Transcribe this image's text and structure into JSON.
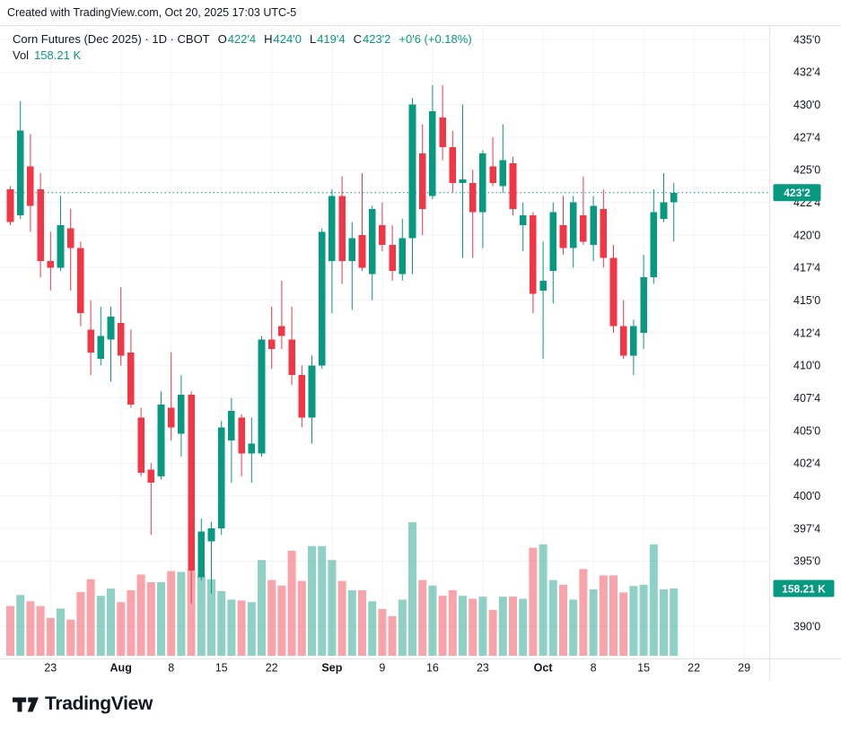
{
  "attribution": "Created with TradingView.com, Oct 20, 2025 17:03 UTC-5",
  "legend": {
    "title": "Corn Futures (Dec 2025) · 1D · CBOT",
    "ohlc": [
      {
        "label": "O",
        "value": "422'4"
      },
      {
        "label": "H",
        "value": "424'0"
      },
      {
        "label": "L",
        "value": "419'4"
      },
      {
        "label": "C",
        "value": "423'2"
      }
    ],
    "change": "+0'6 (+0.18%)",
    "vol_label": "Vol",
    "vol_value": "158.21 K"
  },
  "footer": {
    "logo_text": "TradingView"
  },
  "colors": {
    "up": "#089981",
    "down": "#F23645",
    "vol_up": "rgba(8,153,129,0.45)",
    "vol_down": "rgba(242,54,69,0.45)",
    "text": "#131722",
    "grid": "#F0F3FA",
    "border": "#E0E3EB",
    "badge_text": "#FFFFFF"
  },
  "chart_data": {
    "type": "candlestick+volume",
    "title": "Corn Futures (Dec 2025) 1D CBOT",
    "ylim": [
      390,
      435
    ],
    "grid": true,
    "price_format": "points-and-eighths",
    "current_price": {
      "label": "423'2",
      "value": 423.25
    },
    "current_volume": {
      "label": "158.21 K",
      "value": 158.21
    },
    "y_ticks": [
      {
        "label": "435'0",
        "value": 435.0
      },
      {
        "label": "432'4",
        "value": 432.5
      },
      {
        "label": "430'0",
        "value": 430.0
      },
      {
        "label": "427'4",
        "value": 427.5
      },
      {
        "label": "425'0",
        "value": 425.0
      },
      {
        "label": "422'4",
        "value": 422.5
      },
      {
        "label": "420'0",
        "value": 420.0
      },
      {
        "label": "417'4",
        "value": 417.5
      },
      {
        "label": "415'0",
        "value": 415.0
      },
      {
        "label": "412'4",
        "value": 412.5
      },
      {
        "label": "410'0",
        "value": 410.0
      },
      {
        "label": "407'4",
        "value": 407.5
      },
      {
        "label": "405'0",
        "value": 405.0
      },
      {
        "label": "402'4",
        "value": 402.5
      },
      {
        "label": "400'0",
        "value": 400.0
      },
      {
        "label": "397'4",
        "value": 397.5
      },
      {
        "label": "395'0",
        "value": 395.0
      },
      {
        "label": "390'0",
        "value": 390.0
      }
    ],
    "x_ticks": [
      {
        "label": "23",
        "bar": 4
      },
      {
        "label": "Aug",
        "bar": 11
      },
      {
        "label": "8",
        "bar": 16
      },
      {
        "label": "15",
        "bar": 21
      },
      {
        "label": "22",
        "bar": 26
      },
      {
        "label": "Sep",
        "bar": 32
      },
      {
        "label": "9",
        "bar": 37
      },
      {
        "label": "16",
        "bar": 42
      },
      {
        "label": "23",
        "bar": 47
      },
      {
        "label": "Oct",
        "bar": 53
      },
      {
        "label": "8",
        "bar": 58
      },
      {
        "label": "15",
        "bar": 63
      },
      {
        "label": "22",
        "bar": 68
      },
      {
        "label": "29",
        "bar": 73
      }
    ],
    "candle_fields": [
      "open",
      "high",
      "low",
      "close",
      "volume_k"
    ],
    "candles": [
      [
        423.5,
        423.75,
        420.75,
        421.0,
        117
      ],
      [
        421.5,
        430.25,
        421.25,
        428.0,
        143
      ],
      [
        425.25,
        427.75,
        420.25,
        422.25,
        128
      ],
      [
        423.5,
        424.75,
        416.75,
        418.0,
        117
      ],
      [
        418.0,
        420.25,
        415.75,
        417.5,
        89
      ],
      [
        417.5,
        423.0,
        417.25,
        420.75,
        111
      ],
      [
        420.5,
        422.0,
        415.75,
        419.0,
        85
      ],
      [
        419.0,
        419.5,
        413.0,
        414.0,
        150
      ],
      [
        412.75,
        415.0,
        409.25,
        411.0,
        180
      ],
      [
        410.5,
        414.5,
        410.0,
        412.25,
        141
      ],
      [
        412.0,
        414.5,
        408.75,
        413.75,
        158
      ],
      [
        413.25,
        416.0,
        410.0,
        410.75,
        126
      ],
      [
        411.0,
        412.75,
        406.75,
        407.0,
        154
      ],
      [
        406.0,
        406.75,
        401.5,
        401.75,
        191
      ],
      [
        402.0,
        402.5,
        397.0,
        401.0,
        173
      ],
      [
        401.5,
        408.0,
        401.25,
        407.0,
        173
      ],
      [
        406.75,
        411.0,
        404.25,
        405.25,
        199
      ],
      [
        404.75,
        409.25,
        403.0,
        407.75,
        197
      ],
      [
        407.75,
        408.0,
        391.75,
        394.25,
        202
      ],
      [
        393.75,
        398.25,
        393.5,
        397.25,
        188
      ],
      [
        396.5,
        398.0,
        392.5,
        397.5,
        180
      ],
      [
        397.5,
        405.75,
        397.0,
        405.25,
        152
      ],
      [
        404.25,
        407.5,
        401.0,
        406.5,
        132
      ],
      [
        406.0,
        406.25,
        401.5,
        403.25,
        130
      ],
      [
        403.25,
        406.0,
        401.0,
        404.0,
        126
      ],
      [
        403.25,
        412.25,
        403.0,
        412.0,
        225
      ],
      [
        412.0,
        414.5,
        409.75,
        411.25,
        178
      ],
      [
        413.0,
        416.5,
        411.25,
        412.25,
        165
      ],
      [
        412.0,
        414.5,
        408.5,
        409.25,
        247
      ],
      [
        409.25,
        410.0,
        405.25,
        406.0,
        176
      ],
      [
        406.0,
        410.75,
        404.0,
        410.0,
        258
      ],
      [
        410.0,
        420.5,
        409.75,
        420.25,
        258
      ],
      [
        418.0,
        423.5,
        414.0,
        423.0,
        225
      ],
      [
        423.0,
        424.5,
        416.25,
        418.0,
        176
      ],
      [
        418.0,
        421.0,
        414.25,
        419.75,
        154
      ],
      [
        420.0,
        424.75,
        417.25,
        417.5,
        154
      ],
      [
        417.0,
        422.25,
        415.0,
        422.0,
        128
      ],
      [
        420.75,
        422.5,
        418.75,
        419.25,
        110
      ],
      [
        419.25,
        420.75,
        416.5,
        417.25,
        93
      ],
      [
        417.0,
        421.25,
        416.5,
        419.75,
        132
      ],
      [
        419.75,
        430.5,
        417.0,
        430.0,
        314
      ],
      [
        426.25,
        428.5,
        420.0,
        422.0,
        178
      ],
      [
        423.0,
        431.5,
        422.75,
        429.5,
        165
      ],
      [
        429.0,
        431.5,
        425.75,
        426.75,
        141
      ],
      [
        426.75,
        428.0,
        423.25,
        424.0,
        154
      ],
      [
        424.0,
        430.0,
        418.25,
        424.25,
        141
      ],
      [
        424.0,
        425.0,
        418.25,
        421.75,
        134
      ],
      [
        421.75,
        426.5,
        419.0,
        426.25,
        139
      ],
      [
        425.25,
        427.5,
        423.75,
        424.0,
        108
      ],
      [
        423.75,
        428.5,
        423.25,
        425.75,
        139
      ],
      [
        425.5,
        426.0,
        421.5,
        422.0,
        139
      ],
      [
        420.75,
        422.5,
        418.75,
        421.5,
        134
      ],
      [
        421.5,
        421.75,
        414.0,
        415.5,
        254
      ],
      [
        415.75,
        419.5,
        410.5,
        416.5,
        262
      ],
      [
        417.25,
        422.5,
        414.75,
        421.75,
        178
      ],
      [
        420.75,
        423.0,
        418.5,
        419.0,
        167
      ],
      [
        419.0,
        423.0,
        417.5,
        422.5,
        132
      ],
      [
        421.5,
        424.5,
        419.25,
        419.5,
        204
      ],
      [
        419.25,
        423.0,
        418.0,
        422.25,
        156
      ],
      [
        422.0,
        423.5,
        417.5,
        418.25,
        189
      ],
      [
        418.25,
        419.25,
        412.5,
        413.0,
        189
      ],
      [
        413.0,
        415.0,
        410.5,
        410.75,
        149
      ],
      [
        410.75,
        413.5,
        409.25,
        413.0,
        164
      ],
      [
        412.5,
        418.5,
        411.25,
        416.75,
        167
      ],
      [
        416.75,
        423.5,
        416.25,
        421.75,
        262
      ],
      [
        421.25,
        424.75,
        421.0,
        422.5,
        156
      ],
      [
        422.5,
        424.0,
        419.5,
        423.25,
        158.21
      ]
    ]
  }
}
